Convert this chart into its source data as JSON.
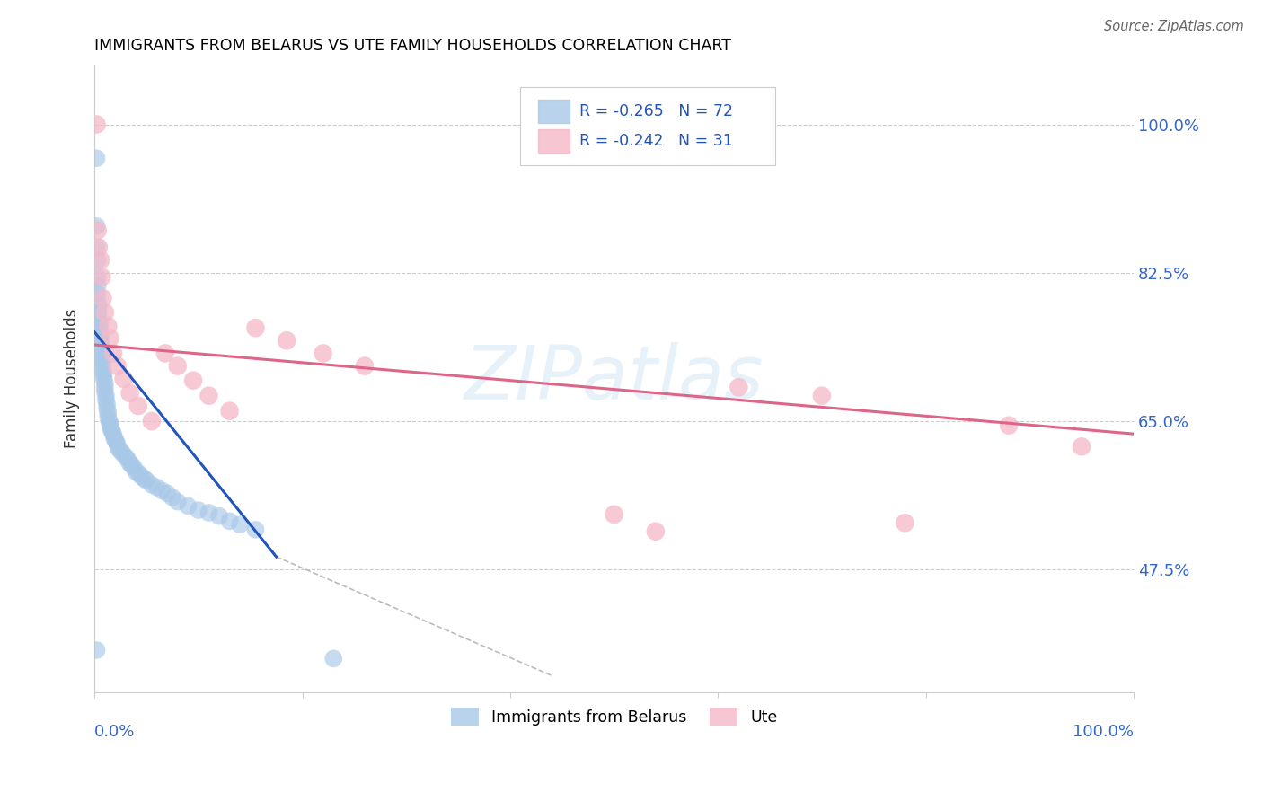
{
  "title": "IMMIGRANTS FROM BELARUS VS UTE FAMILY HOUSEHOLDS CORRELATION CHART",
  "source": "Source: ZipAtlas.com",
  "ylabel": "Family Households",
  "xlim": [
    0.0,
    1.0
  ],
  "ylim": [
    0.33,
    1.07
  ],
  "y_tick_positions": [
    0.475,
    0.65,
    0.825,
    1.0
  ],
  "y_tick_labels": [
    "47.5%",
    "65.0%",
    "82.5%",
    "100.0%"
  ],
  "grid_color": "#cccccc",
  "blue_color": "#a8c8e8",
  "pink_color": "#f5b8c8",
  "blue_line_color": "#2255bb",
  "pink_line_color": "#dd6688",
  "dashed_line_color": "#bbbbbb",
  "watermark": "ZIPatlas",
  "title_fontsize": 12.5,
  "blue_scatter_x": [
    0.002,
    0.002,
    0.002,
    0.003,
    0.003,
    0.003,
    0.003,
    0.003,
    0.004,
    0.004,
    0.004,
    0.005,
    0.005,
    0.005,
    0.006,
    0.006,
    0.006,
    0.007,
    0.007,
    0.007,
    0.008,
    0.008,
    0.008,
    0.009,
    0.009,
    0.01,
    0.01,
    0.01,
    0.011,
    0.011,
    0.012,
    0.012,
    0.013,
    0.013,
    0.014,
    0.015,
    0.015,
    0.016,
    0.017,
    0.018,
    0.019,
    0.02,
    0.021,
    0.022,
    0.023,
    0.025,
    0.027,
    0.03,
    0.032,
    0.034,
    0.036,
    0.038,
    0.04,
    0.043,
    0.045,
    0.048,
    0.05,
    0.055,
    0.06,
    0.065,
    0.07,
    0.075,
    0.08,
    0.09,
    0.1,
    0.11,
    0.12,
    0.13,
    0.14,
    0.155,
    0.002,
    0.23
  ],
  "blue_scatter_y": [
    0.96,
    0.88,
    0.855,
    0.84,
    0.82,
    0.81,
    0.8,
    0.79,
    0.785,
    0.778,
    0.77,
    0.765,
    0.76,
    0.755,
    0.75,
    0.745,
    0.74,
    0.735,
    0.73,
    0.725,
    0.72,
    0.715,
    0.71,
    0.705,
    0.7,
    0.695,
    0.69,
    0.685,
    0.68,
    0.675,
    0.67,
    0.665,
    0.66,
    0.655,
    0.65,
    0.648,
    0.645,
    0.64,
    0.638,
    0.635,
    0.63,
    0.628,
    0.625,
    0.622,
    0.618,
    0.615,
    0.612,
    0.608,
    0.605,
    0.6,
    0.598,
    0.595,
    0.59,
    0.588,
    0.585,
    0.582,
    0.58,
    0.575,
    0.572,
    0.568,
    0.565,
    0.56,
    0.555,
    0.55,
    0.545,
    0.542,
    0.538,
    0.532,
    0.528,
    0.522,
    0.38,
    0.37
  ],
  "pink_scatter_x": [
    0.002,
    0.003,
    0.004,
    0.006,
    0.007,
    0.008,
    0.01,
    0.013,
    0.015,
    0.018,
    0.022,
    0.028,
    0.034,
    0.042,
    0.055,
    0.068,
    0.08,
    0.095,
    0.11,
    0.13,
    0.155,
    0.185,
    0.22,
    0.26,
    0.5,
    0.54,
    0.62,
    0.7,
    0.78,
    0.88,
    0.95
  ],
  "pink_scatter_y": [
    1.0,
    0.875,
    0.855,
    0.84,
    0.82,
    0.795,
    0.778,
    0.762,
    0.748,
    0.73,
    0.715,
    0.7,
    0.683,
    0.668,
    0.65,
    0.73,
    0.715,
    0.698,
    0.68,
    0.662,
    0.76,
    0.745,
    0.73,
    0.715,
    0.54,
    0.52,
    0.69,
    0.68,
    0.53,
    0.645,
    0.62
  ],
  "blue_line_x": [
    0.0,
    0.175
  ],
  "blue_line_y": [
    0.755,
    0.49
  ],
  "pink_line_x": [
    0.0,
    1.0
  ],
  "pink_line_y": [
    0.74,
    0.635
  ],
  "dashed_line_x": [
    0.175,
    0.44
  ],
  "dashed_line_y": [
    0.49,
    0.35
  ]
}
